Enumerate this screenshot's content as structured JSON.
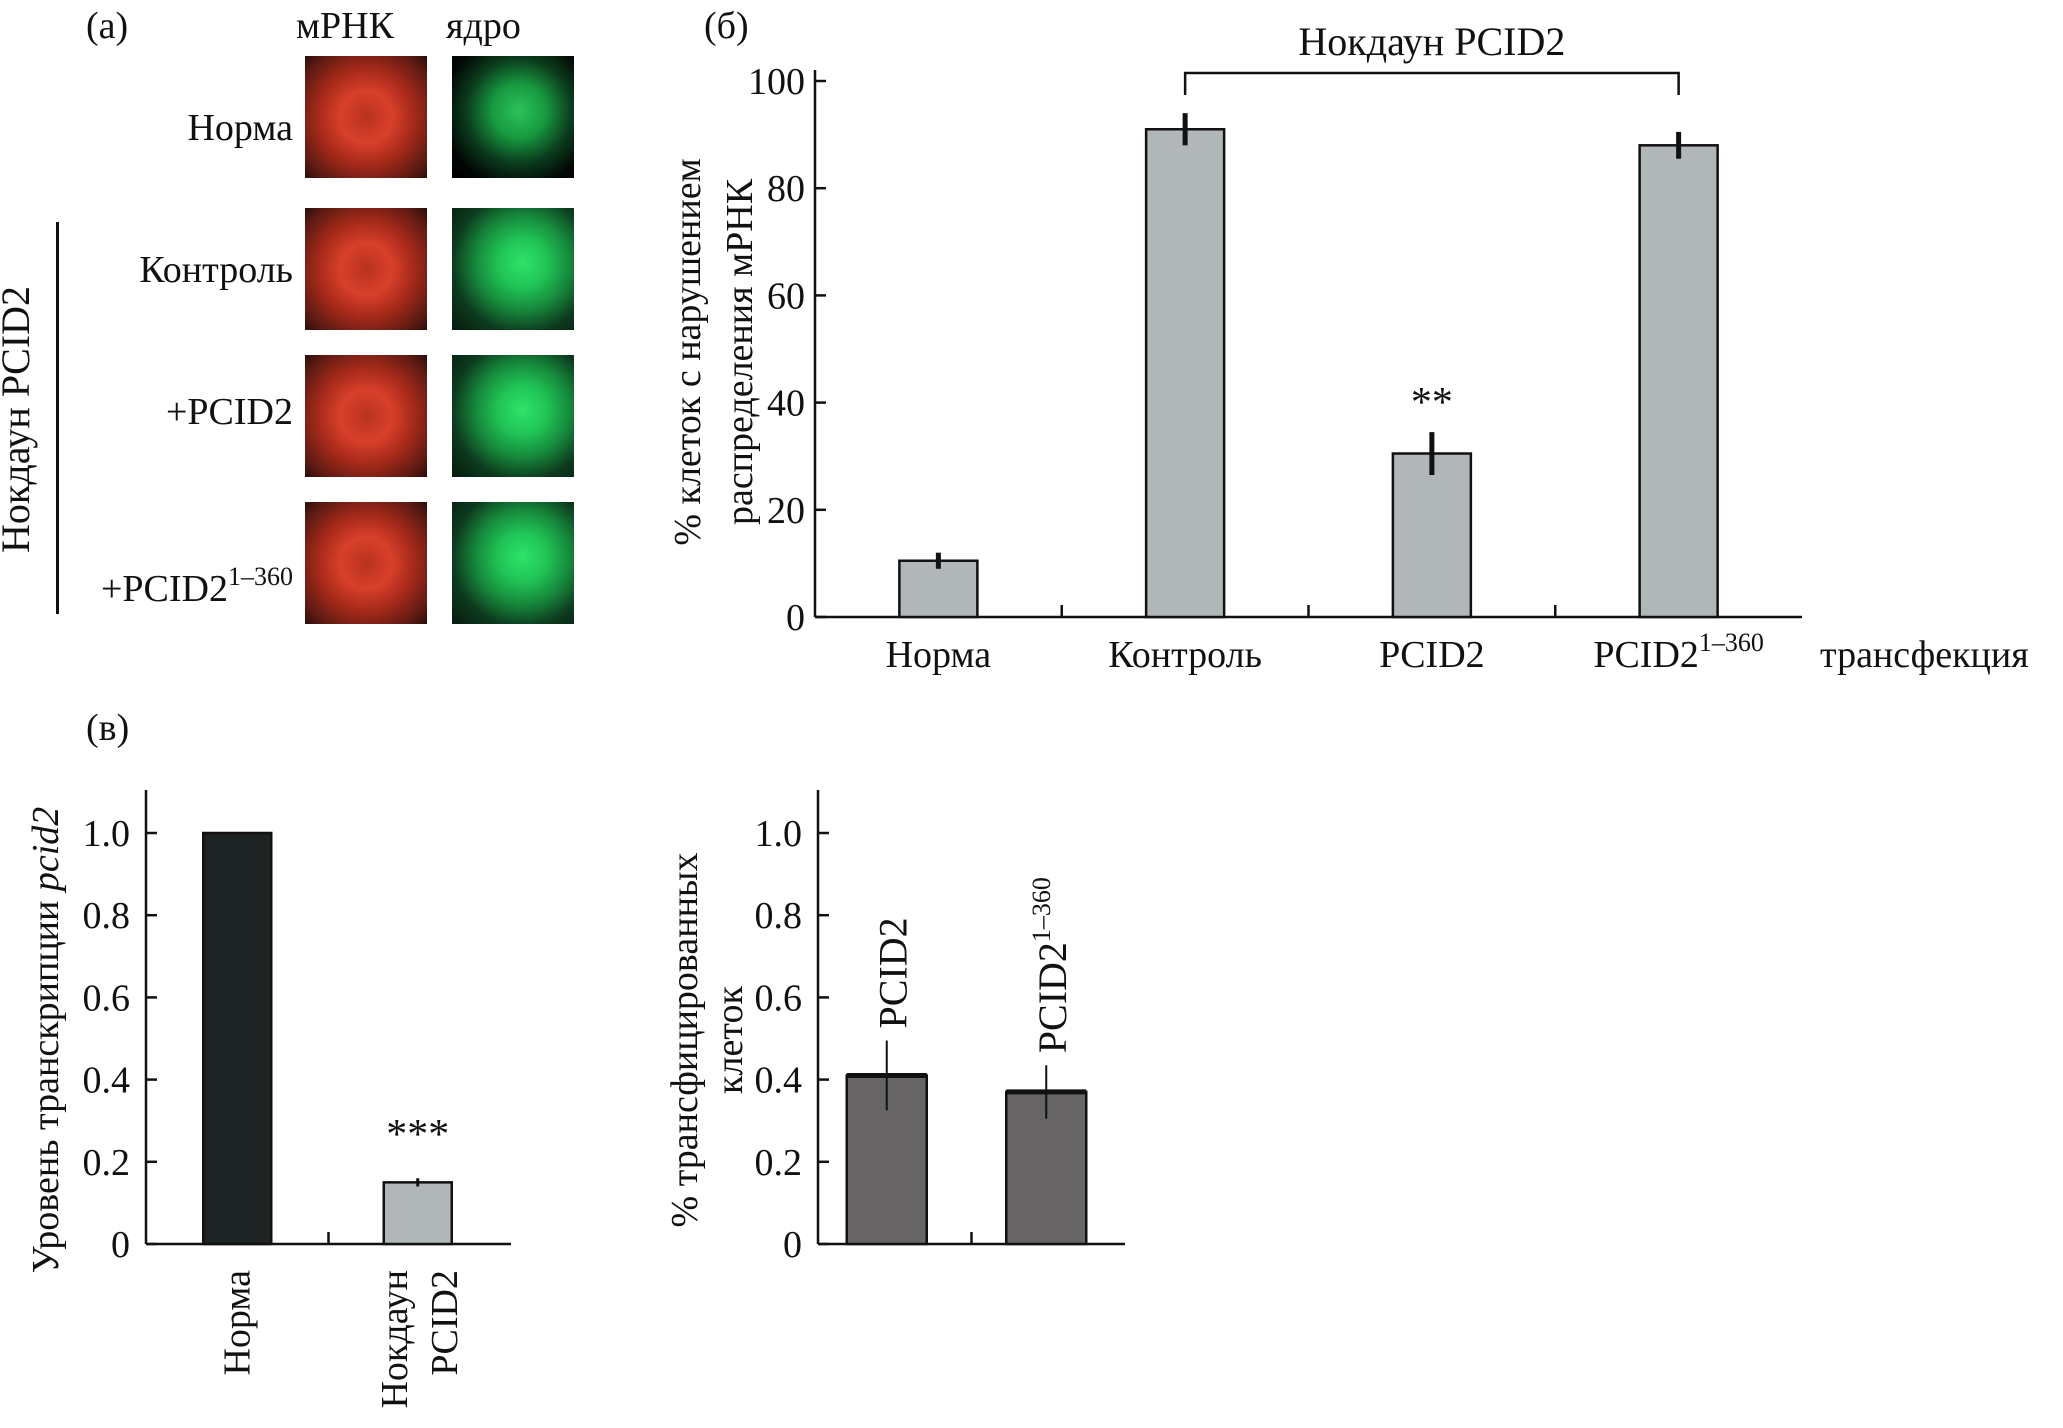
{
  "panel_a": {
    "tag": "(а)",
    "col_headers": [
      "мРНК",
      "ядро"
    ],
    "rows": [
      "Норма",
      "Контроль",
      "+PCID2",
      "+PCID2"
    ],
    "superscript": "1–360",
    "group_label": "Нокдаун PCID2"
  },
  "panel_b_tag": "(б)",
  "panel_v_tag": "(в)",
  "chart_data": [
    {
      "type": "bar",
      "panel": "б",
      "categories": [
        "Норма",
        "Контроль",
        "PCID2",
        "PCID2"
      ],
      "category_superscripts": [
        "",
        "",
        "",
        "1–360"
      ],
      "values": [
        10.5,
        91,
        30.5,
        88
      ],
      "errors": [
        1.5,
        3,
        4,
        2.5
      ],
      "significance": [
        "",
        "",
        "**",
        ""
      ],
      "ylabel": [
        "% клеток с нарушением",
        "распределения мРНК"
      ],
      "xlabel": "трансфекция",
      "bracket_label": "Нокдаун PCID2",
      "bracket_span": [
        1,
        3
      ],
      "ylim": [
        0,
        100
      ],
      "yticks": [
        "0",
        "20",
        "40",
        "60",
        "80",
        "100"
      ],
      "colors": [
        "#b1b7b9"
      ]
    },
    {
      "type": "bar",
      "panel": "в-1",
      "categories": [
        "Норма",
        "Нокдаун PCID2"
      ],
      "category_lines": [
        [
          "Норма"
        ],
        [
          "Нокдаун",
          "PCID2"
        ]
      ],
      "values": [
        1.0,
        0.15
      ],
      "errors": [
        0,
        0.01
      ],
      "significance": [
        "",
        "***"
      ],
      "ylabel": "Уровень транскрипции",
      "ylabel_italic": "pcid2",
      "ylim": [
        0,
        1.0
      ],
      "yticks": [
        "0",
        "0.2",
        "0.4",
        "0.6",
        "0.8",
        "1.0"
      ],
      "colors": [
        "#1d2423",
        "#b1b7b9"
      ]
    },
    {
      "type": "bar",
      "panel": "в-2",
      "categories": [
        "PCID2",
        "PCID2"
      ],
      "category_superscripts": [
        "",
        "1–360"
      ],
      "values": [
        0.41,
        0.37
      ],
      "errors": [
        0.085,
        0.065
      ],
      "ylabel": [
        "% трансфицированных",
        "клеток"
      ],
      "ylim": [
        0,
        1.0
      ],
      "yticks": [
        "0",
        "0.2",
        "0.4",
        "0.6",
        "0.8",
        "1.0"
      ],
      "colors": [
        "#676466"
      ]
    }
  ]
}
